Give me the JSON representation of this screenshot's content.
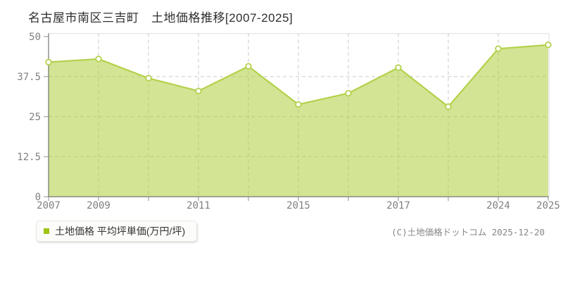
{
  "title": "名古屋市南区三吉町　土地価格推移[2007-2025]",
  "legend": {
    "label": "土地価格 平均坪単価(万円/坪)",
    "marker_color": "#9ec412"
  },
  "footer": {
    "copyright": "(C)土地価格ドットコム 2025-12-20"
  },
  "chart_data": {
    "type": "area",
    "title": "名古屋市南区三吉町 土地価格推移[2007-2025]",
    "series_name": "土地価格 平均坪単価(万円/坪)",
    "unit": "万円/坪",
    "x_labels": [
      "2007",
      "2009",
      "",
      "2011",
      "",
      "2015",
      "",
      "2017",
      "",
      "2024",
      "2025"
    ],
    "values": [
      42,
      43,
      37,
      33,
      40.7,
      28.8,
      32.3,
      40.3,
      28.1,
      46.2,
      47.4
    ],
    "ylim": [
      0,
      50
    ],
    "yticks": [
      0,
      12.5,
      25,
      37.5,
      50
    ],
    "grid": true,
    "legend_position": "bottom-left",
    "colors": {
      "line": "#b3d14b",
      "fill": "rgba(175,205,60,0.55)",
      "point_fill": "#ffffff",
      "grid": "#c9c9c9",
      "axis": "#5a5a5a",
      "tick": "#8c8c8c",
      "frame": "#e8e8e8",
      "tick_label": "#808080",
      "title_color": "#2f2f2f"
    }
  }
}
